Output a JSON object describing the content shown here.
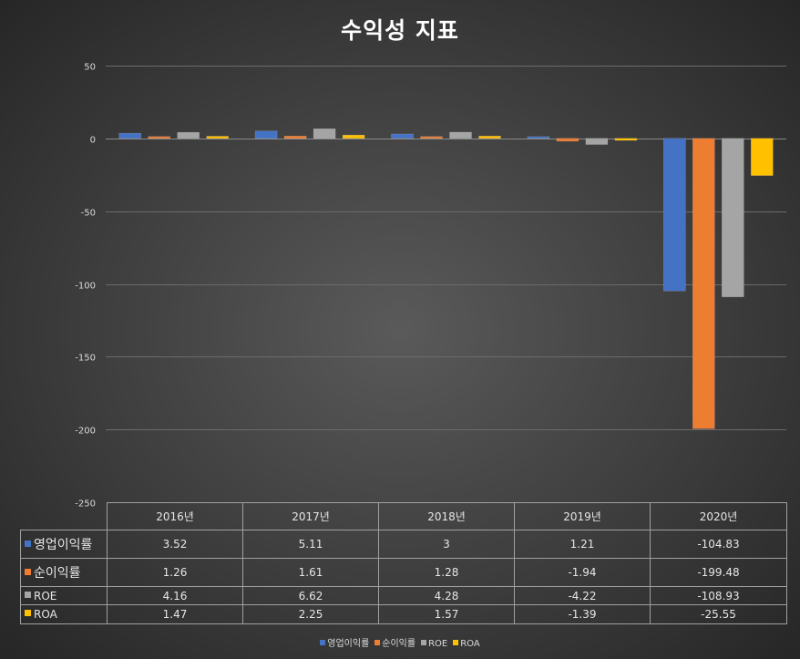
{
  "chart_data": {
    "type": "bar",
    "title": "수익성 지표",
    "categories": [
      "2016년",
      "2017년",
      "2018년",
      "2019년",
      "2020년"
    ],
    "series": [
      {
        "name": "영업이익률",
        "color": "#4472c4",
        "values": [
          3.52,
          5.11,
          3,
          1.21,
          -104.83
        ],
        "labels": [
          "3.52",
          "5.11",
          "3",
          "1.21",
          "-104.83"
        ]
      },
      {
        "name": "순이익률",
        "color": "#ed7d31",
        "values": [
          1.26,
          1.61,
          1.28,
          -1.94,
          -199.48
        ],
        "labels": [
          "1.26",
          "1.61",
          "1.28",
          "-1.94",
          "-199.48"
        ]
      },
      {
        "name": "ROE",
        "color": "#a5a5a5",
        "values": [
          4.16,
          6.62,
          4.28,
          -4.22,
          -108.93
        ],
        "labels": [
          "4.16",
          "6.62",
          "4.28",
          "-4.22",
          "-108.93"
        ]
      },
      {
        "name": "ROA",
        "color": "#ffc000",
        "values": [
          1.47,
          2.25,
          1.57,
          -1.39,
          -25.55
        ],
        "labels": [
          "1.47",
          "2.25",
          "1.57",
          "-1.39",
          "-25.55"
        ]
      }
    ],
    "ylim": [
      -250,
      50
    ],
    "yticks": [
      50,
      0,
      -50,
      -100,
      -150,
      -200,
      -250
    ],
    "xlabel": "",
    "ylabel": "",
    "grid": true,
    "legend_position": "bottom"
  }
}
